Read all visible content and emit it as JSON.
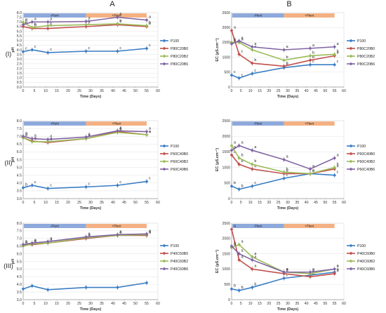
{
  "column_headers": [
    "A",
    "B"
  ],
  "row_labels": [
    "(I)",
    "(II)",
    "(III)"
  ],
  "band_labels": {
    "minus": "-Plant",
    "plus": "+Plant"
  },
  "colors": {
    "band_minus": "#8ea9db",
    "band_plus": "#f4b183",
    "series": [
      "#3b7dc4",
      "#c0504d",
      "#9bbb59",
      "#8064a2"
    ]
  },
  "chart_data": [
    {
      "type": "line",
      "xlabel": "Time (Days)",
      "ylabel": "pH",
      "xlim": [
        0,
        60
      ],
      "xticks": [
        0,
        5,
        10,
        15,
        20,
        25,
        30,
        35,
        40,
        45,
        50,
        55,
        60
      ],
      "ylim": [
        0,
        8
      ],
      "yticks": [
        0,
        0.5,
        1,
        1.5,
        2,
        2.5,
        3,
        3.5,
        4,
        4.5,
        5,
        5.5,
        6,
        6.5,
        7,
        7.5,
        8
      ],
      "ytick_decimals": 1,
      "x": [
        0,
        4,
        11,
        28,
        42,
        55
      ],
      "series": [
        {
          "name": "P100",
          "values": [
            3.8,
            4.0,
            3.7,
            3.85,
            3.85,
            4.15
          ],
          "labels": [
            "c",
            "c",
            "c",
            "c",
            "c",
            "c"
          ]
        },
        {
          "name": "P80C20B0",
          "values": [
            6.5,
            6.3,
            6.3,
            6.5,
            6.7,
            6.5
          ],
          "labels": [
            "b",
            "b",
            "b",
            "c",
            "c",
            "b"
          ]
        },
        {
          "name": "P80C20B2",
          "values": [
            6.95,
            6.4,
            6.6,
            6.7,
            6.8,
            6.6
          ],
          "labels": [
            "a",
            "b",
            "b",
            "b",
            "b",
            "b"
          ]
        },
        {
          "name": "P80C20B6",
          "values": [
            6.7,
            7.0,
            7.0,
            7.05,
            7.5,
            7.2
          ],
          "labels": [
            "b",
            "a",
            "a",
            "a",
            "a",
            "a"
          ]
        }
      ]
    },
    {
      "type": "line",
      "xlabel": "Time (Days)",
      "ylabel": "EC (µS.cm⁻¹)",
      "xlim": [
        0,
        60
      ],
      "xticks": [
        0,
        5,
        10,
        15,
        20,
        25,
        30,
        35,
        40,
        45,
        50,
        55,
        60
      ],
      "ylim": [
        0,
        2500
      ],
      "yticks": [
        0,
        500,
        1000,
        1500,
        2000,
        2500
      ],
      "ytick_decimals": 0,
      "x": [
        0,
        4,
        11,
        28,
        42,
        55
      ],
      "series": [
        {
          "name": "P100",
          "values": [
            400,
            300,
            450,
            650,
            750,
            750
          ],
          "labels": [
            "c",
            "c",
            "c",
            "b",
            "c",
            "c"
          ]
        },
        {
          "name": "P80C20B0",
          "values": [
            1900,
            1100,
            800,
            700,
            900,
            1050
          ],
          "labels": [
            "a",
            "c",
            "b",
            "b",
            "b",
            "b"
          ]
        },
        {
          "name": "P80C20B2",
          "values": [
            1500,
            1500,
            1250,
            900,
            1050,
            1100
          ],
          "labels": [
            "b",
            "a",
            "a",
            "b",
            "b",
            "b"
          ]
        },
        {
          "name": "P80C20B6",
          "values": [
            1450,
            1550,
            1350,
            1250,
            1300,
            1350
          ],
          "labels": [
            "b",
            "a",
            "a",
            "a",
            "a",
            "a"
          ]
        }
      ]
    },
    {
      "type": "line",
      "xlabel": "Time (Days)",
      "ylabel": "pH",
      "xlim": [
        0,
        60
      ],
      "xticks": [
        0,
        5,
        10,
        15,
        20,
        25,
        30,
        35,
        40,
        45,
        50,
        55,
        60
      ],
      "ylim": [
        3,
        8
      ],
      "yticks": [
        3,
        3.5,
        4,
        4.5,
        5,
        5.5,
        6,
        6.5,
        7,
        7.5,
        8
      ],
      "ytick_decimals": 1,
      "x": [
        0,
        4,
        11,
        28,
        42,
        55
      ],
      "series": [
        {
          "name": "P100",
          "values": [
            3.7,
            3.85,
            3.65,
            3.75,
            3.85,
            4.1
          ],
          "labels": [
            "b",
            "c",
            "c",
            "c",
            "c",
            "c"
          ]
        },
        {
          "name": "P60C40B0",
          "values": [
            6.9,
            6.7,
            6.6,
            6.85,
            7.3,
            7.1
          ],
          "labels": [
            "a",
            "a",
            "a",
            "a",
            "a",
            "a"
          ]
        },
        {
          "name": "P60C40B2",
          "values": [
            6.9,
            6.65,
            6.65,
            6.85,
            7.25,
            7.1
          ],
          "labels": [
            "a",
            "a",
            "a",
            "a",
            "a",
            "a"
          ]
        },
        {
          "name": "P60C40B6",
          "values": [
            7.0,
            6.85,
            6.8,
            6.95,
            7.35,
            7.3
          ],
          "labels": [
            "a",
            "a",
            "a",
            "a",
            "a",
            "a"
          ]
        }
      ]
    },
    {
      "type": "line",
      "xlabel": "Time (Days)",
      "ylabel": "EC (µS.cm⁻¹)",
      "xlim": [
        0,
        60
      ],
      "xticks": [
        0,
        5,
        10,
        15,
        20,
        25,
        30,
        35,
        40,
        45,
        50,
        55,
        60
      ],
      "ylim": [
        0,
        2500
      ],
      "yticks": [
        0,
        500,
        1000,
        1500,
        2000,
        2500
      ],
      "ytick_decimals": 0,
      "x": [
        0,
        4,
        11,
        28,
        42,
        55
      ],
      "series": [
        {
          "name": "P100",
          "values": [
            400,
            300,
            400,
            650,
            800,
            750
          ],
          "labels": [
            "b",
            "b",
            "c",
            "c",
            "a",
            "c"
          ]
        },
        {
          "name": "P60C40B0",
          "values": [
            1400,
            1100,
            950,
            800,
            800,
            950
          ],
          "labels": [
            "a",
            "b",
            "b",
            "b",
            "a",
            "b"
          ]
        },
        {
          "name": "P60C40B2",
          "values": [
            1700,
            1300,
            1100,
            850,
            800,
            1000
          ],
          "labels": [
            "a",
            "b",
            "b",
            "b",
            "a",
            "b"
          ]
        },
        {
          "name": "P60C40B6",
          "values": [
            1550,
            1700,
            1550,
            1250,
            950,
            1300
          ],
          "labels": [
            "a",
            "a",
            "a",
            "a",
            "a",
            "a"
          ]
        }
      ]
    },
    {
      "type": "line",
      "xlabel": "Time (Days)",
      "ylabel": "pH",
      "xlim": [
        0,
        60
      ],
      "xticks": [
        0,
        5,
        10,
        15,
        20,
        25,
        30,
        35,
        40,
        45,
        50,
        55,
        60
      ],
      "ylim": [
        3,
        8
      ],
      "yticks": [
        3,
        3.5,
        4,
        4.5,
        5,
        5.5,
        6,
        6.5,
        7,
        7.5,
        8
      ],
      "ytick_decimals": 1,
      "x": [
        0,
        4,
        11,
        28,
        42,
        55
      ],
      "series": [
        {
          "name": "P100",
          "values": [
            3.7,
            3.9,
            3.65,
            3.8,
            3.8,
            4.1
          ],
          "labels": [
            "",
            "",
            "",
            "",
            "",
            ""
          ]
        },
        {
          "name": "P40C60B0",
          "values": [
            6.6,
            6.6,
            6.7,
            7.0,
            7.2,
            7.2
          ],
          "labels": [
            "a",
            "a",
            "a",
            "a",
            "a",
            "a"
          ]
        },
        {
          "name": "P40C60B2",
          "values": [
            6.5,
            6.65,
            6.7,
            7.05,
            7.2,
            7.25
          ],
          "labels": [
            "a",
            "a",
            "a",
            "a",
            "a",
            "a"
          ]
        },
        {
          "name": "P40C60B6",
          "values": [
            6.6,
            6.7,
            6.8,
            7.1,
            7.25,
            7.3
          ],
          "labels": [
            "a",
            "a",
            "a",
            "a",
            "a",
            "a"
          ]
        }
      ]
    },
    {
      "type": "line",
      "xlabel": "Time (Days)",
      "ylabel": "EC (µS.cm⁻¹)",
      "xlim": [
        0,
        60
      ],
      "xticks": [
        0,
        5,
        10,
        15,
        20,
        25,
        30,
        35,
        40,
        45,
        50,
        55,
        60
      ],
      "ylim": [
        0,
        2500
      ],
      "yticks": [
        0,
        500,
        1000,
        1500,
        2000,
        2500
      ],
      "ytick_decimals": 0,
      "x": [
        0,
        4,
        11,
        28,
        42,
        55
      ],
      "series": [
        {
          "name": "P100",
          "values": [
            350,
            300,
            400,
            700,
            800,
            900
          ],
          "labels": [
            "b",
            "b",
            "b",
            "c",
            "a",
            "a"
          ]
        },
        {
          "name": "P40C60B0",
          "values": [
            2300,
            1300,
            1000,
            850,
            750,
            850
          ],
          "labels": [
            "a",
            "a",
            "a",
            "a",
            "b",
            "a"
          ]
        },
        {
          "name": "P40C60B2",
          "values": [
            1700,
            1800,
            1400,
            900,
            850,
            1000
          ],
          "labels": [
            "a",
            "a",
            "a",
            "a",
            "a",
            "a"
          ]
        },
        {
          "name": "P40C60B6",
          "values": [
            1750,
            1500,
            1300,
            900,
            900,
            1000
          ],
          "labels": [
            "a",
            "a",
            "a",
            "a",
            "a",
            "a"
          ]
        }
      ]
    }
  ]
}
